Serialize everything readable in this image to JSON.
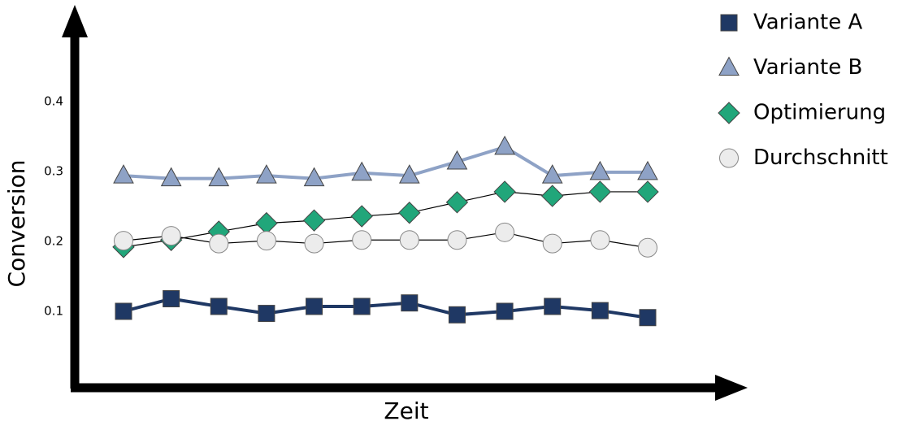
{
  "chart_data": {
    "type": "line",
    "x_label": "Zeit",
    "y_label": "Conversion",
    "categories": [
      null,
      null,
      null,
      null,
      null,
      null,
      null,
      null,
      null,
      null,
      null,
      null
    ],
    "series": [
      {
        "name": "Variante A",
        "color": "#1f3864",
        "line_color": "#1f3864",
        "marker": "square",
        "values": [
          0.1,
          0.118,
          0.107,
          0.097,
          0.107,
          0.107,
          0.112,
          0.095,
          0.1,
          0.107,
          0.101,
          0.091
        ]
      },
      {
        "name": "Variante B",
        "color": "#8ea2c6",
        "line_color": "#8ea2c6",
        "marker": "triangle",
        "values": [
          0.294,
          0.29,
          0.29,
          0.294,
          0.29,
          0.298,
          0.294,
          0.314,
          0.335,
          0.294,
          0.299,
          0.299
        ]
      },
      {
        "name": "Optimierung",
        "color": "#21a67a",
        "line_color": "#000000",
        "marker": "diamond",
        "values": [
          0.192,
          0.202,
          0.214,
          0.226,
          0.23,
          0.236,
          0.241,
          0.256,
          0.271,
          0.265,
          0.271,
          0.271
        ]
      },
      {
        "name": "Durchschnitt",
        "color": "#ececec",
        "line_color": "#000000",
        "marker": "circle",
        "values": [
          0.201,
          0.208,
          0.197,
          0.201,
          0.197,
          0.202,
          0.202,
          0.202,
          0.213,
          0.197,
          0.202,
          0.191
        ]
      }
    ],
    "ylim": [
      0,
      0.5
    ],
    "yticks": [
      0.1,
      0.2,
      0.3,
      0.4
    ],
    "grid": false,
    "legend": "right"
  }
}
